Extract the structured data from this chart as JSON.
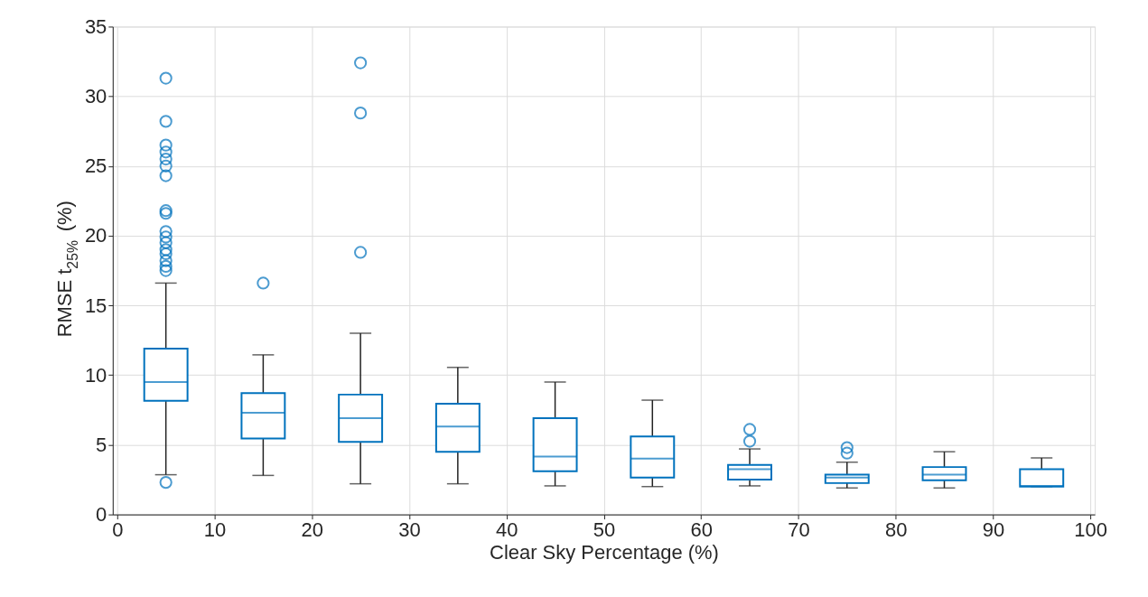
{
  "chart_data": {
    "type": "box",
    "xlabel": "Clear Sky Percentage (%)",
    "ylabel": "RMSE t$_{25%}$ (%)",
    "x": [
      5,
      15,
      25,
      35,
      45,
      55,
      65,
      75,
      85,
      95
    ],
    "color": "#0072bd",
    "boxes": [
      {
        "low": 2.85,
        "q1": 8.15,
        "median": 9.5,
        "q3": 11.9,
        "high": 16.6,
        "outliers": [
          2.3,
          17.5,
          17.8,
          18.2,
          18.7,
          19.0,
          19.5,
          19.9,
          20.3,
          21.6,
          21.8,
          24.3,
          25.0,
          25.5,
          26.0,
          26.5,
          28.2,
          31.3
        ]
      },
      {
        "low": 2.8,
        "q1": 5.45,
        "median": 7.3,
        "q3": 8.7,
        "high": 11.45,
        "outliers": [
          16.6
        ]
      },
      {
        "low": 2.2,
        "q1": 5.2,
        "median": 6.9,
        "q3": 8.6,
        "high": 13.0,
        "outliers": [
          18.8,
          28.8,
          32.4
        ]
      },
      {
        "low": 2.2,
        "q1": 4.5,
        "median": 6.3,
        "q3": 7.95,
        "high": 10.55
      },
      {
        "low": 2.05,
        "q1": 3.1,
        "median": 4.15,
        "q3": 6.9,
        "high": 9.5
      },
      {
        "low": 2.0,
        "q1": 2.65,
        "median": 4.0,
        "q3": 5.6,
        "high": 8.2
      },
      {
        "low": 2.05,
        "q1": 2.5,
        "median": 3.25,
        "q3": 3.55,
        "high": 4.7,
        "outliers": [
          5.25,
          6.1
        ]
      },
      {
        "low": 1.9,
        "q1": 2.25,
        "median": 2.65,
        "q3": 2.85,
        "high": 3.75,
        "outliers": [
          4.4,
          4.8
        ]
      },
      {
        "low": 1.9,
        "q1": 2.45,
        "median": 2.85,
        "q3": 3.4,
        "high": 4.5
      },
      {
        "low": 2.0,
        "q1": 2.0,
        "median": 2.05,
        "q3": 3.25,
        "high": 4.05
      }
    ],
    "xlim": [
      0,
      100
    ],
    "xticks": [
      0,
      10,
      20,
      30,
      40,
      50,
      60,
      70,
      80,
      90,
      100
    ],
    "ylim": [
      0,
      35
    ],
    "yticks": [
      0,
      5,
      10,
      15,
      20,
      25,
      30,
      35
    ],
    "grid": true,
    "marker": "circle"
  }
}
